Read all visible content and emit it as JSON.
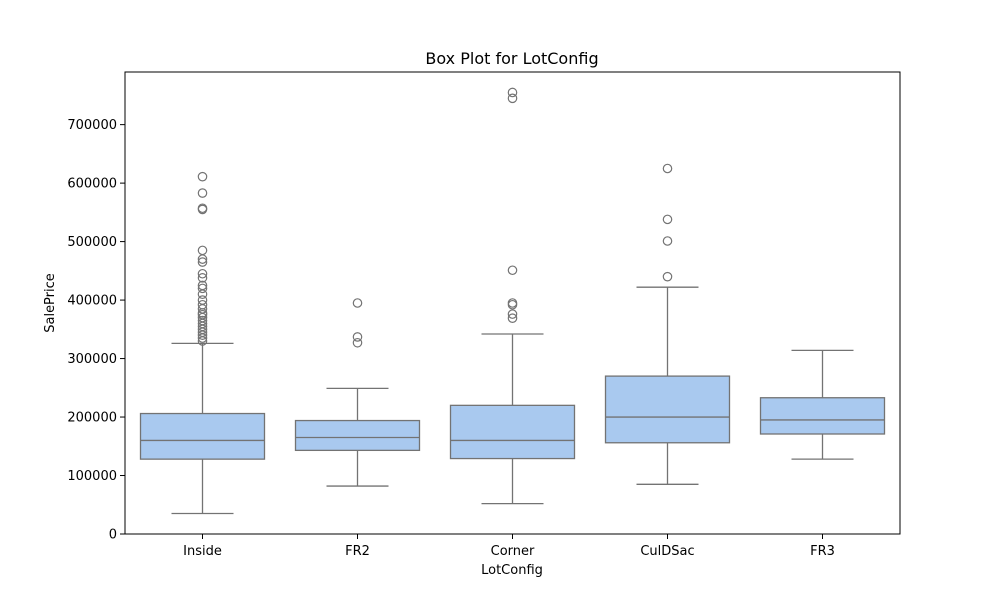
{
  "chart_data": {
    "type": "box",
    "title": "Box Plot for LotConfig",
    "xlabel": "LotConfig",
    "ylabel": "SalePrice",
    "ylim": [
      0,
      790000
    ],
    "yticks": [
      0,
      100000,
      200000,
      300000,
      400000,
      500000,
      600000,
      700000
    ],
    "ytick_labels": [
      "0",
      "100000",
      "200000",
      "300000",
      "400000",
      "500000",
      "600000",
      "700000"
    ],
    "box_color": "#a9c9ef",
    "line_color": "#737373",
    "grid": false,
    "categories": [
      "Inside",
      "FR2",
      "Corner",
      "CulDSac",
      "FR3"
    ],
    "boxes": [
      {
        "category": "Inside",
        "whisker_low": 35000,
        "q1": 128000,
        "median": 160000,
        "q3": 206000,
        "whisker_high": 326000,
        "outliers": [
          330000,
          335000,
          340000,
          345000,
          350000,
          355000,
          360000,
          365000,
          370000,
          375000,
          378000,
          385000,
          392000,
          400000,
          410000,
          420000,
          425000,
          438000,
          445000,
          465000,
          470000,
          485000,
          555000,
          557000,
          583000,
          611000
        ]
      },
      {
        "category": "FR2",
        "whisker_low": 82000,
        "q1": 143000,
        "median": 165000,
        "q3": 194000,
        "whisker_high": 249000,
        "outliers": [
          327000,
          337000,
          395000
        ]
      },
      {
        "category": "Corner",
        "whisker_low": 52000,
        "q1": 129000,
        "median": 160000,
        "q3": 220000,
        "whisker_high": 342000,
        "outliers": [
          369000,
          376000,
          392000,
          395000,
          451000,
          745000,
          755000
        ]
      },
      {
        "category": "CulDSac",
        "whisker_low": 85000,
        "q1": 156000,
        "median": 200000,
        "q3": 270000,
        "whisker_high": 422000,
        "outliers": [
          440000,
          501000,
          538000,
          625000
        ]
      },
      {
        "category": "FR3",
        "whisker_low": 128000,
        "q1": 171000,
        "median": 195000,
        "q3": 233000,
        "whisker_high": 314000,
        "outliers": []
      }
    ]
  }
}
